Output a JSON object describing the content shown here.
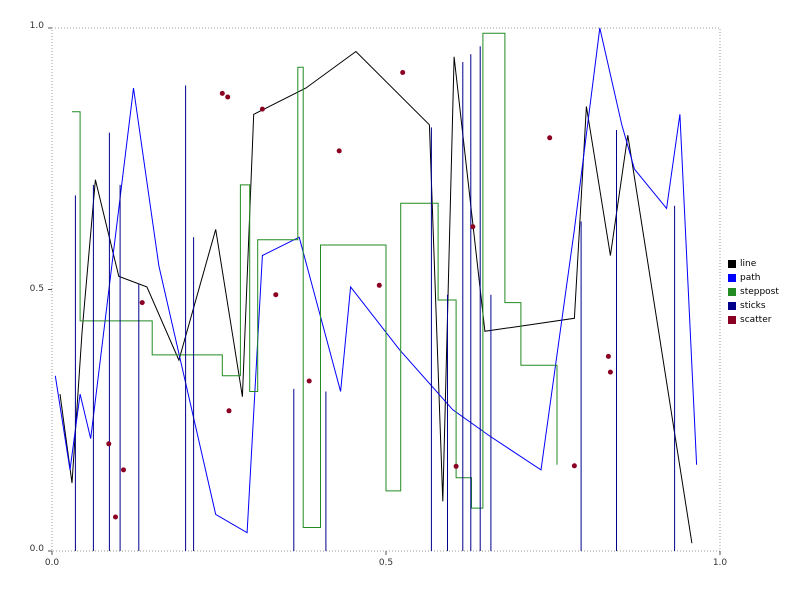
{
  "chart_data": {
    "type": "line",
    "title": "",
    "xlabel": "",
    "ylabel": "",
    "xlim": [
      0,
      1
    ],
    "ylim": [
      0,
      1
    ],
    "grid": false,
    "frame_style": "dotted",
    "x_tick_values": [
      0,
      0.5,
      1
    ],
    "y_tick_values": [
      0,
      0.5,
      1
    ],
    "x_ticks": [
      "0.0",
      "0.5",
      "1.0"
    ],
    "y_ticks": [
      "0.0",
      "0.5",
      "1.0"
    ],
    "legend": {
      "position": "right-outside",
      "entries": [
        {
          "label": "line",
          "color": "#000000"
        },
        {
          "label": "path",
          "color": "#0000ff"
        },
        {
          "label": "steppost",
          "color": "#228b22"
        },
        {
          "label": "sticks",
          "color": "#00008b"
        },
        {
          "label": "scatter",
          "color": "#8b0022"
        }
      ]
    },
    "series": [
      {
        "name": "line",
        "type": "line",
        "color": "#000000",
        "points": [
          [
            0.012,
            0.3
          ],
          [
            0.03,
            0.13
          ],
          [
            0.045,
            0.42
          ],
          [
            0.065,
            0.71
          ],
          [
            0.1,
            0.525
          ],
          [
            0.142,
            0.505
          ],
          [
            0.19,
            0.365
          ],
          [
            0.245,
            0.615
          ],
          [
            0.272,
            0.4
          ],
          [
            0.285,
            0.295
          ],
          [
            0.302,
            0.835
          ],
          [
            0.38,
            0.885
          ],
          [
            0.455,
            0.955
          ],
          [
            0.565,
            0.815
          ],
          [
            0.585,
            0.095
          ],
          [
            0.602,
            0.945
          ],
          [
            0.648,
            0.42
          ],
          [
            0.782,
            0.445
          ],
          [
            0.8,
            0.85
          ],
          [
            0.836,
            0.565
          ],
          [
            0.862,
            0.795
          ],
          [
            0.958,
            0.015
          ]
        ]
      },
      {
        "name": "path",
        "type": "line",
        "color": "#0000ff",
        "points": [
          [
            0.005,
            0.335
          ],
          [
            0.027,
            0.155
          ],
          [
            0.042,
            0.3
          ],
          [
            0.058,
            0.215
          ],
          [
            0.122,
            0.885
          ],
          [
            0.16,
            0.545
          ],
          [
            0.245,
            0.07
          ],
          [
            0.292,
            0.035
          ],
          [
            0.315,
            0.565
          ],
          [
            0.37,
            0.6
          ],
          [
            0.432,
            0.305
          ],
          [
            0.447,
            0.505
          ],
          [
            0.52,
            0.385
          ],
          [
            0.6,
            0.27
          ],
          [
            0.655,
            0.22
          ],
          [
            0.732,
            0.155
          ],
          [
            0.782,
            0.615
          ],
          [
            0.82,
            1.0
          ],
          [
            0.853,
            0.815
          ],
          [
            0.872,
            0.73
          ],
          [
            0.92,
            0.655
          ],
          [
            0.94,
            0.835
          ],
          [
            0.965,
            0.165
          ]
        ]
      },
      {
        "name": "steppost",
        "type": "step-post",
        "color": "#228b22",
        "points": [
          [
            0.03,
            0.84
          ],
          [
            0.042,
            0.44
          ],
          [
            0.15,
            0.375
          ],
          [
            0.255,
            0.335
          ],
          [
            0.282,
            0.7
          ],
          [
            0.296,
            0.305
          ],
          [
            0.308,
            0.595
          ],
          [
            0.368,
            0.925
          ],
          [
            0.376,
            0.045
          ],
          [
            0.402,
            0.585
          ],
          [
            0.5,
            0.115
          ],
          [
            0.522,
            0.665
          ],
          [
            0.578,
            0.48
          ],
          [
            0.605,
            0.14
          ],
          [
            0.628,
            0.082
          ],
          [
            0.645,
            0.99
          ],
          [
            0.678,
            0.475
          ],
          [
            0.702,
            0.355
          ],
          [
            0.756,
            0.165
          ]
        ]
      },
      {
        "name": "sticks",
        "type": "sticks",
        "color": "#00008b",
        "points": [
          [
            0.035,
            0.68
          ],
          [
            0.062,
            0.7
          ],
          [
            0.086,
            0.8
          ],
          [
            0.102,
            0.7
          ],
          [
            0.13,
            0.51
          ],
          [
            0.2,
            0.89
          ],
          [
            0.212,
            0.6
          ],
          [
            0.362,
            0.31
          ],
          [
            0.41,
            0.305
          ],
          [
            0.568,
            0.81
          ],
          [
            0.592,
            0.49
          ],
          [
            0.615,
            0.935
          ],
          [
            0.627,
            0.95
          ],
          [
            0.641,
            0.965
          ],
          [
            0.657,
            0.49
          ],
          [
            0.792,
            0.63
          ],
          [
            0.845,
            0.805
          ],
          [
            0.932,
            0.66
          ]
        ]
      },
      {
        "name": "scatter",
        "type": "scatter",
        "color": "#8b0022",
        "points": [
          [
            0.085,
            0.205
          ],
          [
            0.095,
            0.065
          ],
          [
            0.107,
            0.155
          ],
          [
            0.135,
            0.475
          ],
          [
            0.255,
            0.875
          ],
          [
            0.263,
            0.868
          ],
          [
            0.265,
            0.268
          ],
          [
            0.315,
            0.845
          ],
          [
            0.335,
            0.49
          ],
          [
            0.385,
            0.325
          ],
          [
            0.43,
            0.765
          ],
          [
            0.49,
            0.508
          ],
          [
            0.525,
            0.915
          ],
          [
            0.605,
            0.162
          ],
          [
            0.63,
            0.62
          ],
          [
            0.745,
            0.79
          ],
          [
            0.782,
            0.163
          ],
          [
            0.833,
            0.372
          ],
          [
            0.836,
            0.342
          ]
        ]
      }
    ]
  }
}
